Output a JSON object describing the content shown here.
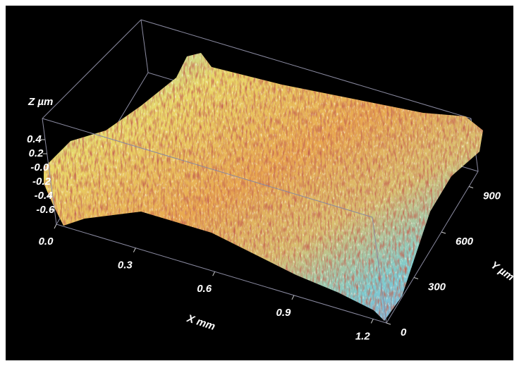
{
  "chart_data": {
    "type": "surface3d",
    "x_label": "X mm",
    "y_label": "Y µm",
    "z_label": "Z µm",
    "xlim": [
      0,
      1.25
    ],
    "ylim": [
      0,
      1000
    ],
    "zlim": [
      -0.8,
      0.7
    ],
    "xticks": [
      {
        "value": 0,
        "label": "0.0"
      },
      0.3,
      0.6,
      0.9,
      1.2
    ],
    "yticks": [
      0,
      300,
      600,
      900
    ],
    "zticks": [
      0.4,
      0.2,
      {
        "value": 0,
        "label": "-0.0"
      },
      -0.2,
      -0.4,
      -0.6
    ]
  }
}
